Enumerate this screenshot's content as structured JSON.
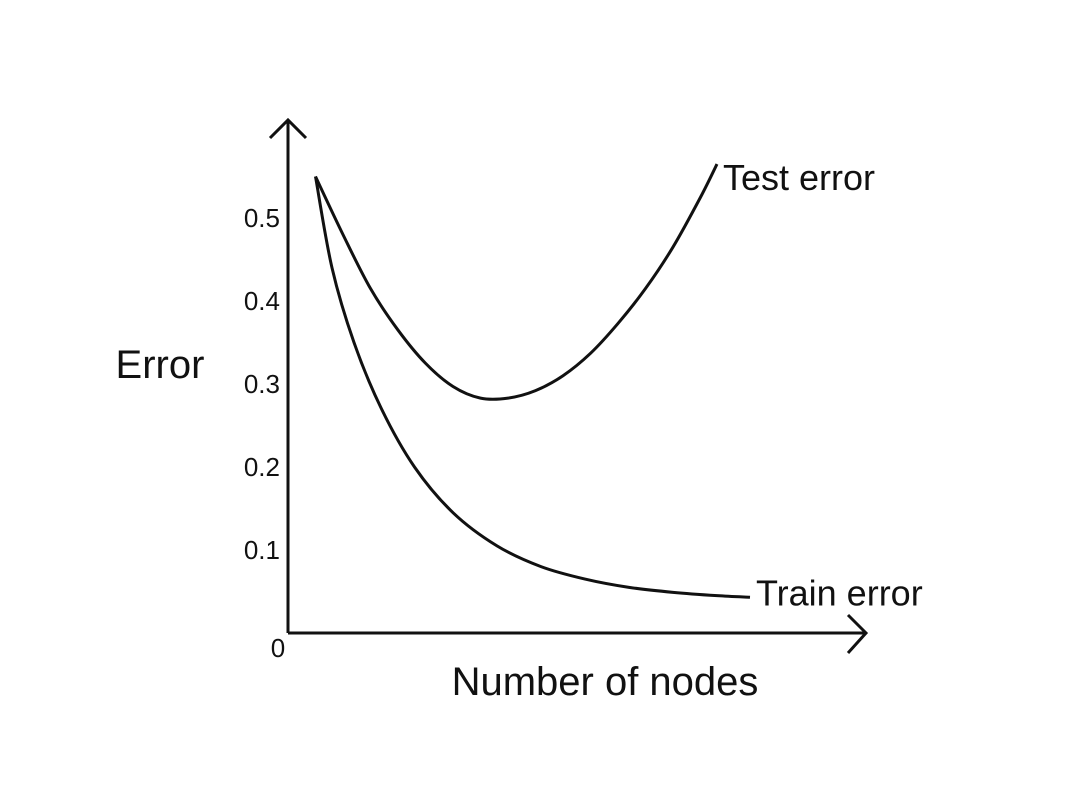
{
  "chart_data": {
    "type": "line",
    "title": "",
    "xlabel": "Number of nodes",
    "ylabel": "Error",
    "x_origin_label": "0",
    "ylim": [
      0,
      0.55
    ],
    "xlim": [
      0,
      10
    ],
    "yticks": [
      {
        "value": 0.1,
        "label": "0.1"
      },
      {
        "value": 0.2,
        "label": "0.2"
      },
      {
        "value": 0.3,
        "label": "0.3"
      },
      {
        "value": 0.4,
        "label": "0.4"
      },
      {
        "value": 0.5,
        "label": "0.5"
      }
    ],
    "series": [
      {
        "name": "Test error",
        "color": "#111111",
        "x": [
          0.5,
          1.0,
          1.5,
          2.0,
          2.5,
          3.0,
          3.5,
          4.0,
          4.5,
          5.0,
          5.5,
          6.0,
          6.5,
          7.0,
          7.5,
          7.8
        ],
        "y": [
          0.55,
          0.48,
          0.415,
          0.365,
          0.325,
          0.297,
          0.283,
          0.283,
          0.292,
          0.31,
          0.337,
          0.373,
          0.415,
          0.465,
          0.525,
          0.565
        ]
      },
      {
        "name": "Train error",
        "color": "#111111",
        "x": [
          0.5,
          0.8,
          1.2,
          1.7,
          2.3,
          3.0,
          3.8,
          4.6,
          5.4,
          6.2,
          7.0,
          7.8,
          8.4
        ],
        "y": [
          0.55,
          0.44,
          0.35,
          0.27,
          0.2,
          0.145,
          0.105,
          0.08,
          0.065,
          0.055,
          0.049,
          0.045,
          0.043
        ]
      }
    ],
    "legend": "inline at line ends",
    "grid": false
  }
}
